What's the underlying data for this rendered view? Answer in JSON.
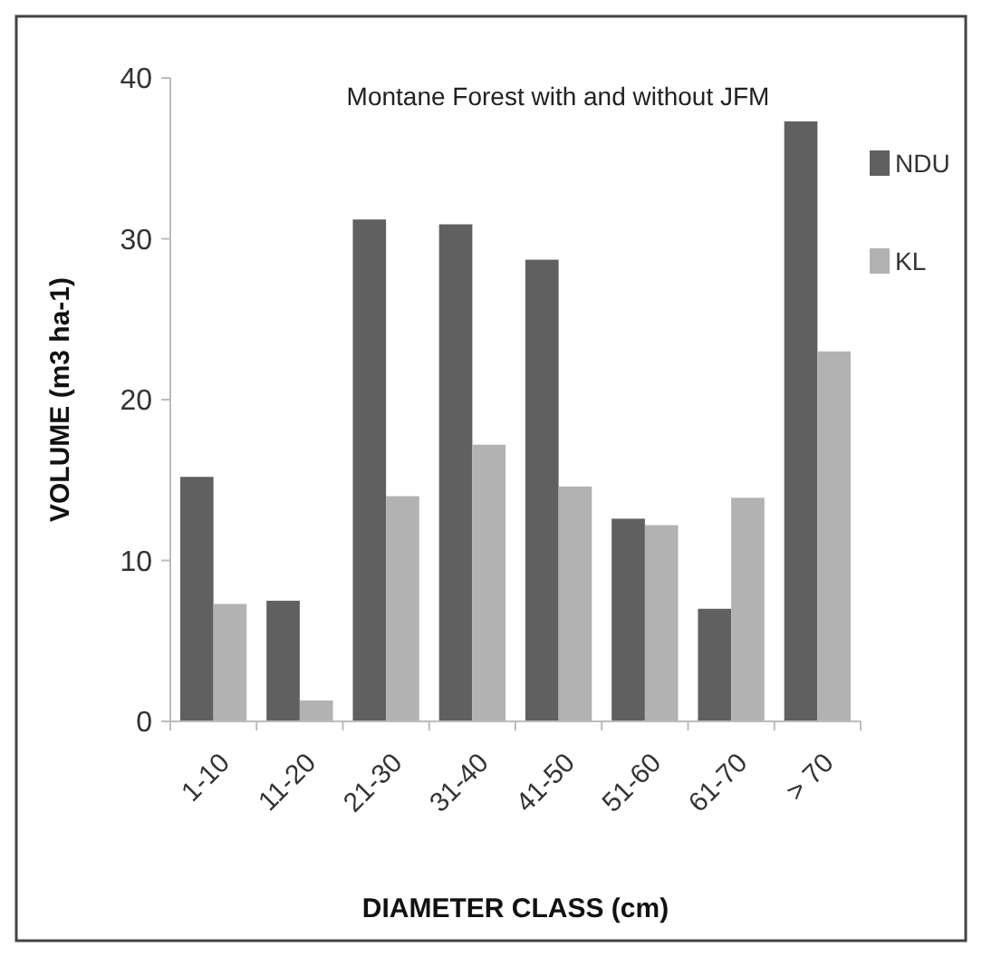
{
  "chart_data": {
    "type": "bar",
    "title": "Montane Forest with and without JFM",
    "xlabel": "DIAMETER CLASS (cm)",
    "ylabel": "VOLUME (m3 ha-1)",
    "categories": [
      "1-10",
      "11-20",
      "21-30",
      "31-40",
      "41-50",
      "51-60",
      "61-70",
      "> 70"
    ],
    "series": [
      {
        "name": "NDU",
        "color": "#606060",
        "values": [
          15.2,
          7.5,
          31.2,
          30.9,
          28.7,
          12.6,
          7.0,
          37.3
        ]
      },
      {
        "name": "KL",
        "color": "#b2b2b2",
        "values": [
          7.3,
          1.3,
          14.0,
          17.2,
          14.6,
          12.2,
          13.9,
          23.0
        ]
      }
    ],
    "ylim": [
      0,
      40
    ],
    "yticks": [
      0,
      10,
      20,
      30,
      40
    ],
    "grid": false,
    "legend": "right"
  }
}
